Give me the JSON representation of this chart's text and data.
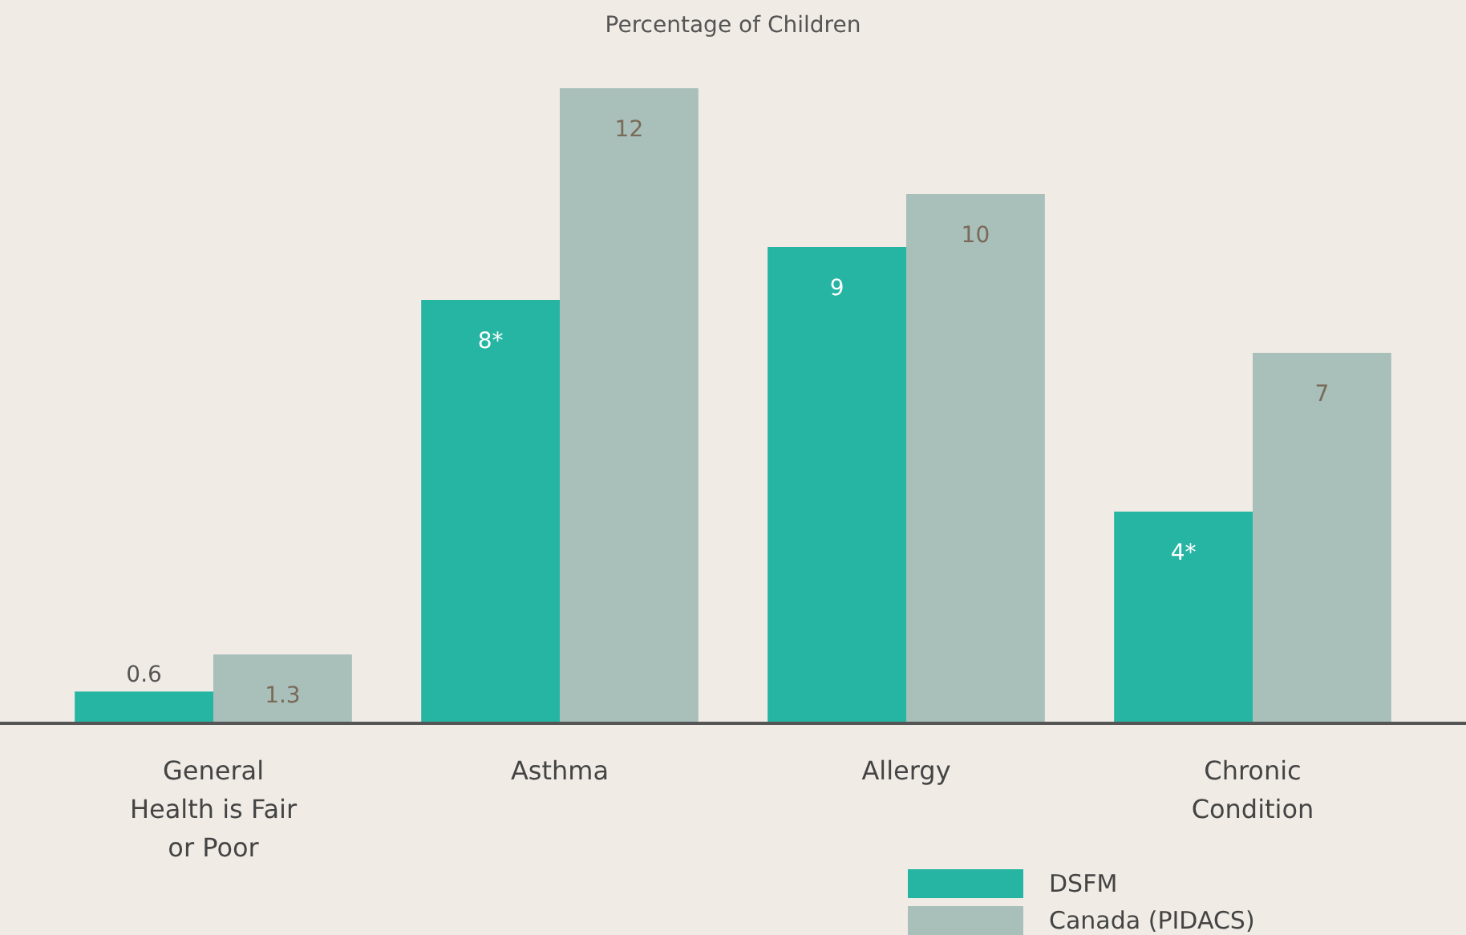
{
  "chart_data": {
    "type": "bar",
    "title": "Percentage of Children",
    "categories": [
      "General Health is Fair or Poor",
      "Asthma",
      "Allergy",
      "Chronic Condition"
    ],
    "series": [
      {
        "name": "DSFM",
        "color": "#26b5a3",
        "values": [
          0.6,
          8,
          9,
          4
        ],
        "value_labels": [
          "0.6",
          "8*",
          "9",
          "4*"
        ]
      },
      {
        "name": "Canada (PIDACS)",
        "color": "#a8bfba",
        "values": [
          1.3,
          12,
          10,
          7
        ],
        "value_labels": [
          "1.3",
          "12",
          "10",
          "7"
        ]
      }
    ],
    "legend": "bottom right",
    "grid": false
  }
}
